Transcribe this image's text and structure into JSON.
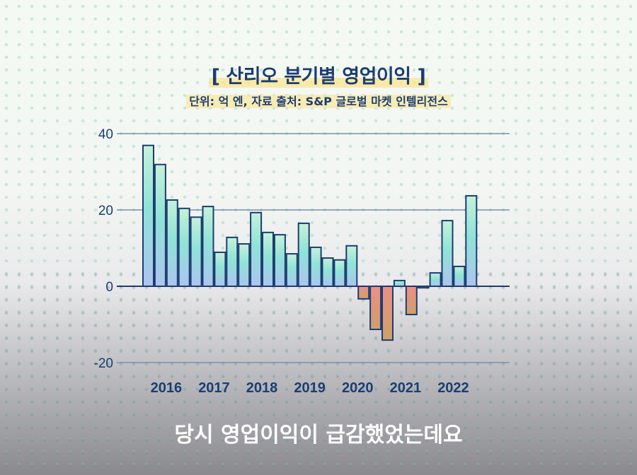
{
  "header": {
    "title": "[ 산리오 분기별 영업이익 ]",
    "subtitle": "단위: 억 엔, 자료 출처: S&P 글로벌 마켓 인텔리전스"
  },
  "caption": "당시 영업이익이 급감했었는데요",
  "colors": {
    "axis": "#1c3d73",
    "positive_top": "#8fe8c8",
    "positive_bottom": "#a9c3ec",
    "negative": "#e58c80",
    "grid": "#6f86a8"
  },
  "chart_data": {
    "type": "bar",
    "title": "산리오 분기별 영업이익",
    "subtitle": "단위: 억 엔, 자료 출처: S&P 글로벌 마켓 인텔리전스",
    "xlabel": "",
    "ylabel": "억 엔",
    "ylim": [
      -20,
      40
    ],
    "yticks": [
      40,
      20,
      0,
      -20
    ],
    "xtick_labels": [
      "2016",
      "2017",
      "2018",
      "2019",
      "2020",
      "2021",
      "2022"
    ],
    "grid": true,
    "categories": [
      "2016Q1",
      "2016Q2",
      "2016Q3",
      "2016Q4",
      "2017Q1",
      "2017Q2",
      "2017Q3",
      "2017Q4",
      "2018Q1",
      "2018Q2",
      "2018Q3",
      "2018Q4",
      "2019Q1",
      "2019Q2",
      "2019Q3",
      "2019Q4",
      "2020Q1",
      "2020Q2",
      "2020Q3",
      "2020Q4",
      "2021Q1",
      "2021Q2",
      "2021Q3",
      "2021Q4",
      "2022Q1",
      "2022Q2",
      "2022Q3",
      "2022Q4"
    ],
    "values": [
      36.9,
      31.9,
      22.6,
      20.4,
      18.1,
      20.9,
      8.9,
      12.8,
      11.1,
      19.3,
      14.1,
      13.5,
      8.5,
      16.5,
      10.2,
      7.4,
      6.9,
      10.6,
      -3.3,
      -11.3,
      -14.1,
      1.5,
      -7.4,
      -0.4,
      3.5,
      17.2,
      5.2,
      23.7
    ]
  }
}
